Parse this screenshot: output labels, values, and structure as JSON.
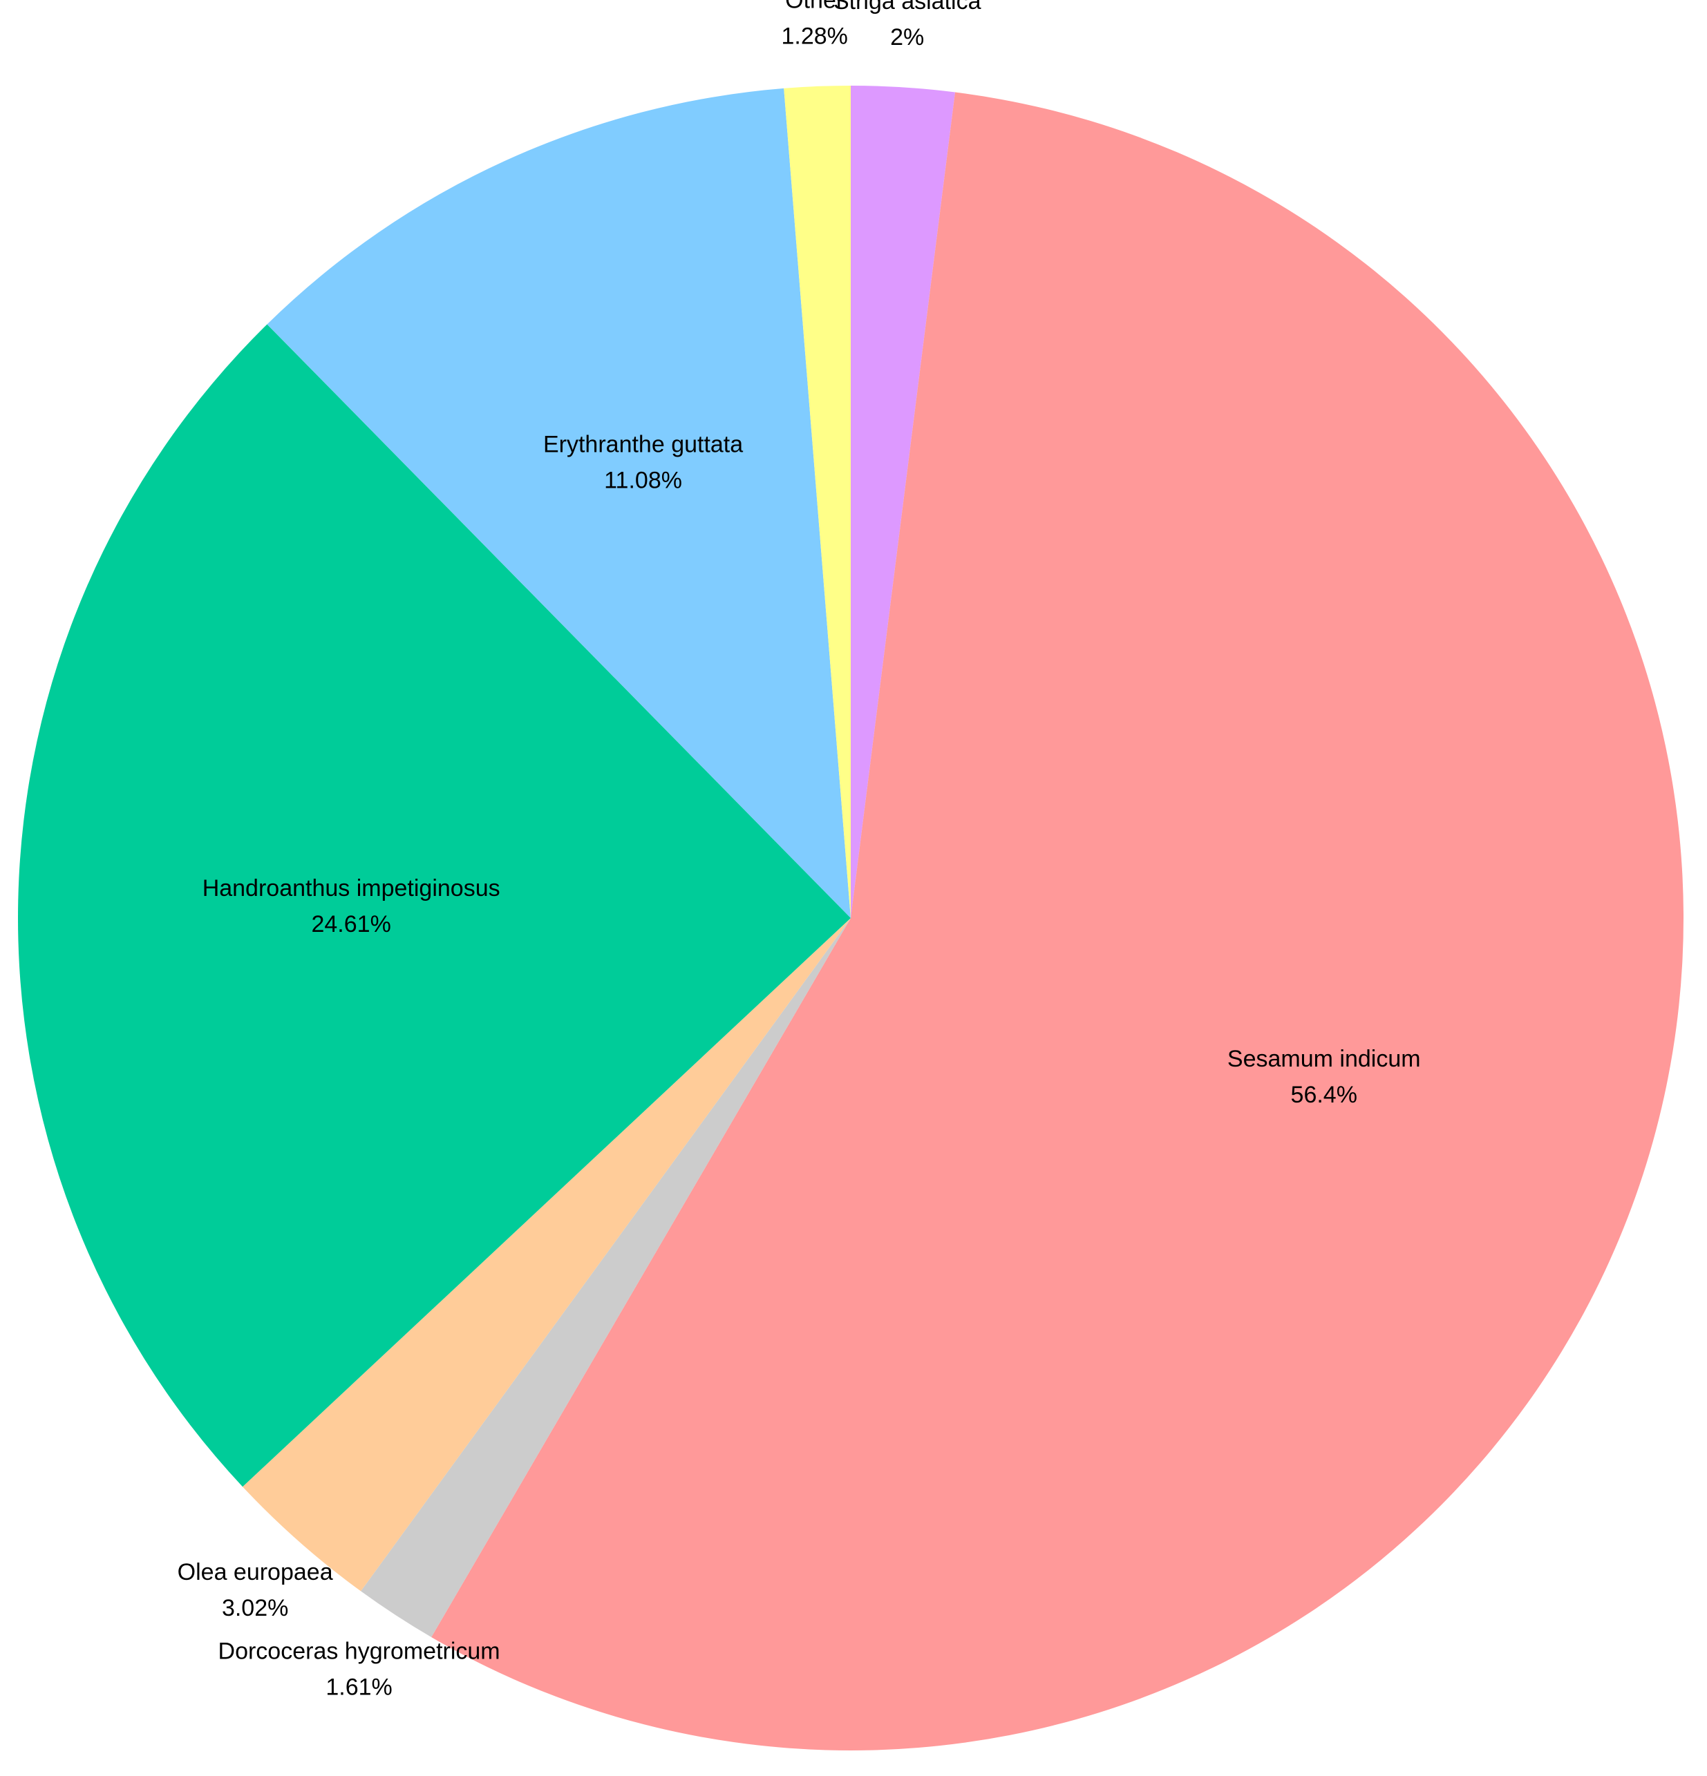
{
  "chart_data": {
    "type": "pie",
    "categories": [
      "Striga asiatica",
      "Sesamum indicum",
      "Dorcoceras hygrometricum",
      "Olea europaea",
      "Handroanthus impetiginosus",
      "Erythranthe guttata",
      "Other"
    ],
    "values": [
      2,
      56.4,
      1.61,
      3.02,
      24.61,
      11.08,
      1.28
    ],
    "value_labels": [
      "2%",
      "56.4%",
      "1.61%",
      "3.02%",
      "24.61%",
      "11.08%",
      "1.28%"
    ],
    "colors": [
      "#dd99ff",
      "#ff9999",
      "#cccccc",
      "#ffcc99",
      "#00cc99",
      "#80ccff",
      "#ffff88"
    ]
  }
}
